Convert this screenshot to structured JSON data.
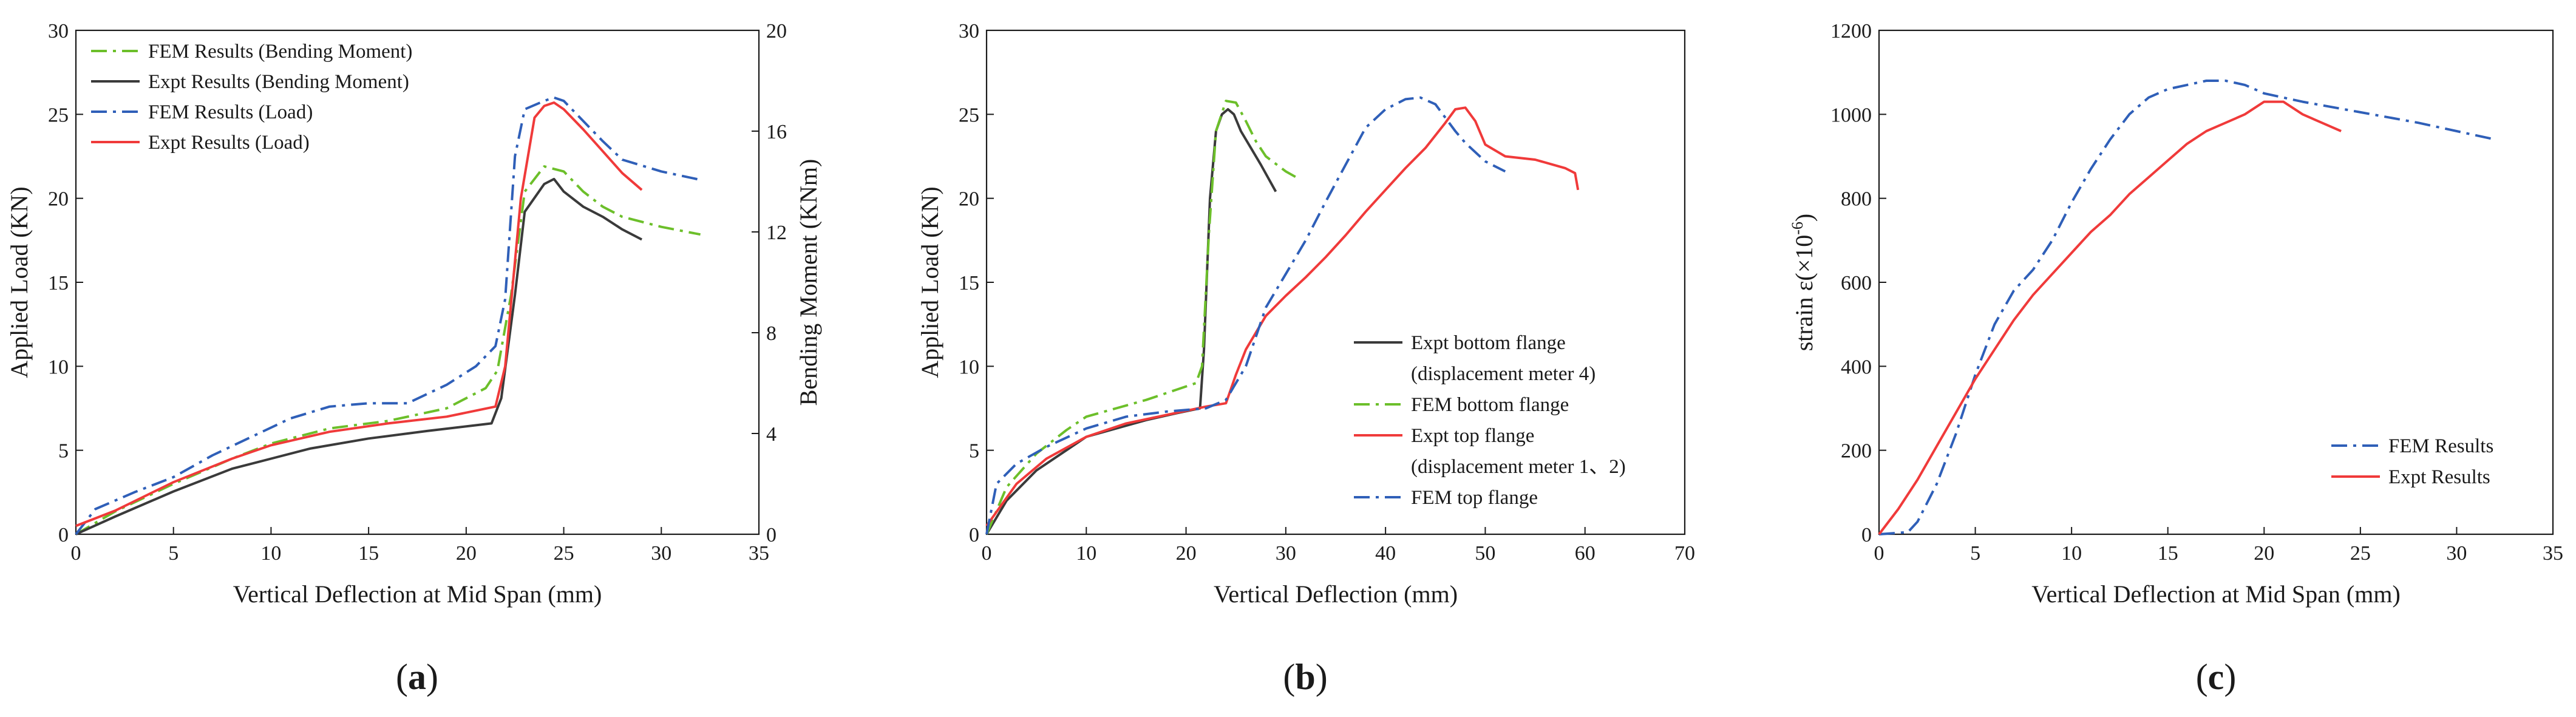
{
  "colors": {
    "green": "#6cbf2a",
    "gray": "#3a3a3a",
    "blue": "#2f5fb8",
    "red": "#f03a3a",
    "axis": "#1a1a1a"
  },
  "panels": [
    {
      "label_text": "a"
    },
    {
      "label_text": "b"
    },
    {
      "label_text": "c"
    }
  ],
  "chart_data": [
    {
      "type": "line",
      "xlabel": "Vertical Deflection at Mid Span (mm)",
      "ylabel": "Applied Load (KN)",
      "y2label": "Bending Moment (KNm)",
      "xlim": [
        0,
        35
      ],
      "ylim": [
        0,
        30
      ],
      "y2lim": [
        0,
        20
      ],
      "xticks": [
        0,
        5,
        10,
        15,
        20,
        25,
        30,
        35
      ],
      "yticks": [
        0,
        5,
        10,
        15,
        20,
        25,
        30
      ],
      "y2ticks": [
        0,
        4,
        8,
        12,
        16,
        20
      ],
      "legend_position": "top-left",
      "series": [
        {
          "name": "FEM Results (Bending Moment)",
          "axis": "right",
          "color_key": "green",
          "dash": "dashdot",
          "x": [
            0,
            2,
            5,
            8,
            10,
            13,
            16,
            19,
            21,
            21.6,
            22.3,
            23,
            24,
            25,
            26,
            27,
            28,
            30,
            32
          ],
          "y": [
            0,
            0.9,
            2.0,
            3.0,
            3.6,
            4.2,
            4.5,
            5.0,
            5.8,
            6.5,
            9.5,
            13.6,
            14.6,
            14.4,
            13.6,
            13.0,
            12.6,
            12.2,
            11.9
          ]
        },
        {
          "name": "Expt Results (Bending Moment)",
          "axis": "right",
          "color_key": "gray",
          "dash": "solid",
          "x": [
            0,
            2,
            5,
            8,
            10,
            12,
            15,
            18,
            21.3,
            21.8,
            22.5,
            23,
            24,
            24.5,
            25,
            26,
            27,
            28,
            29
          ],
          "y": [
            0,
            0.7,
            1.7,
            2.6,
            3.0,
            3.4,
            3.8,
            4.1,
            4.4,
            5.4,
            9.5,
            12.8,
            13.9,
            14.1,
            13.6,
            13.0,
            12.6,
            12.1,
            11.7
          ]
        },
        {
          "name": "FEM Results (Load)",
          "axis": "left",
          "color_key": "blue",
          "dash": "dashdot",
          "x": [
            0,
            1,
            3,
            5,
            7,
            9,
            11,
            13,
            15,
            17,
            19,
            20.5,
            21.5,
            22,
            22.5,
            23,
            24,
            24.5,
            25,
            26,
            27,
            28,
            30,
            32
          ],
          "y": [
            0,
            1.5,
            2.5,
            3.4,
            4.7,
            5.8,
            6.9,
            7.6,
            7.8,
            7.8,
            8.9,
            10.0,
            11.2,
            14,
            22.5,
            25.3,
            25.8,
            26,
            25.8,
            24.6,
            23.4,
            22.3,
            21.6,
            21.1
          ]
        },
        {
          "name": "Expt Results (Load)",
          "axis": "left",
          "color_key": "red",
          "dash": "solid",
          "x": [
            0,
            2,
            5,
            8,
            10,
            13,
            16,
            19,
            21.5,
            22,
            22.8,
            23.5,
            24,
            24.5,
            25,
            26,
            27,
            28,
            29
          ],
          "y": [
            0.5,
            1.4,
            3.1,
            4.5,
            5.3,
            6.1,
            6.6,
            7.0,
            7.6,
            10.0,
            20.0,
            24.8,
            25.5,
            25.7,
            25.3,
            24.1,
            22.8,
            21.5,
            20.5
          ]
        }
      ]
    },
    {
      "type": "line",
      "xlabel": "Vertical Deflection (mm)",
      "ylabel": "Applied Load (KN)",
      "xlim": [
        0,
        70
      ],
      "ylim": [
        0,
        30
      ],
      "xticks": [
        0,
        10,
        20,
        30,
        40,
        50,
        60,
        70
      ],
      "yticks": [
        0,
        5,
        10,
        15,
        20,
        25,
        30
      ],
      "legend_position": "lower-right",
      "series": [
        {
          "name": "Expt bottom flange",
          "name_line2": "(displacement meter 4)",
          "color_key": "gray",
          "dash": "solid",
          "x": [
            0,
            2,
            5,
            8,
            10,
            13,
            16,
            19,
            21.4,
            21.8,
            22.4,
            23.0,
            23.6,
            24.2,
            24.8,
            25.5,
            26.5,
            27.5,
            29
          ],
          "y": [
            0,
            2.0,
            3.8,
            5.0,
            5.8,
            6.3,
            6.8,
            7.2,
            7.5,
            11.0,
            20.0,
            24.0,
            25.0,
            25.3,
            25.0,
            24.0,
            23.0,
            22.0,
            20.4
          ]
        },
        {
          "name": "FEM bottom flange",
          "color_key": "green",
          "dash": "dashdot",
          "x": [
            0,
            2,
            5,
            8,
            10,
            13,
            16,
            19,
            21,
            21.6,
            22.3,
            23.0,
            24.0,
            25.0,
            26.0,
            27.0,
            28.0,
            30.0,
            31.5
          ],
          "y": [
            0,
            2.8,
            4.8,
            6.2,
            7.0,
            7.5,
            8.0,
            8.6,
            9.0,
            10.0,
            18.0,
            24.0,
            25.8,
            25.7,
            24.6,
            23.4,
            22.5,
            21.6,
            21.1
          ]
        },
        {
          "name": "Expt top flange",
          "name_line2": "(displacement meter 1、2)",
          "color_key": "red",
          "dash": "solid",
          "x": [
            0,
            3,
            6,
            10,
            14,
            18,
            22,
            24,
            25,
            26,
            28,
            30,
            32,
            34,
            36,
            38,
            40,
            42,
            44,
            46,
            47,
            48,
            49,
            50,
            52,
            55,
            58,
            59,
            59.3
          ],
          "y": [
            0.5,
            3.0,
            4.5,
            5.8,
            6.6,
            7.1,
            7.6,
            7.8,
            9.5,
            11.0,
            13.0,
            14.2,
            15.3,
            16.5,
            17.8,
            19.2,
            20.5,
            21.8,
            23.0,
            24.5,
            25.3,
            25.4,
            24.6,
            23.2,
            22.5,
            22.3,
            21.8,
            21.5,
            20.5
          ]
        },
        {
          "name": "FEM top flange",
          "color_key": "blue",
          "dash": "dashdot",
          "x": [
            0,
            1,
            3,
            6,
            10,
            14,
            18,
            22,
            24,
            26,
            28,
            30,
            32,
            34,
            36,
            38,
            40,
            42,
            43.5,
            45,
            46,
            47,
            48,
            50,
            52
          ],
          "y": [
            0,
            3.0,
            4.2,
            5.2,
            6.3,
            7.0,
            7.3,
            7.5,
            8.0,
            10.0,
            13.5,
            15.5,
            17.5,
            19.8,
            22.0,
            24.2,
            25.3,
            25.9,
            26.0,
            25.6,
            24.8,
            24.0,
            23.3,
            22.2,
            21.6
          ]
        }
      ]
    },
    {
      "type": "line",
      "xlabel": "Vertical Deflection at Mid Span (mm)",
      "ylabel": "strain ε(×10",
      "ylabel_sup": "-6",
      "ylabel_end": ")",
      "xlim": [
        0,
        35
      ],
      "ylim": [
        0,
        1200
      ],
      "xticks": [
        0,
        5,
        10,
        15,
        20,
        25,
        30,
        35
      ],
      "yticks": [
        0,
        200,
        400,
        600,
        800,
        1000,
        1200
      ],
      "legend_position": "lower-right",
      "series": [
        {
          "name": "FEM Results",
          "color_key": "blue",
          "dash": "dashdot",
          "x": [
            0,
            1.5,
            2,
            3,
            4,
            5,
            6,
            7,
            8,
            9,
            10,
            11,
            12,
            13,
            14,
            15,
            16,
            17,
            18,
            19,
            20,
            22,
            25,
            28,
            32
          ],
          "y": [
            0,
            5,
            30,
            120,
            240,
            380,
            500,
            580,
            630,
            700,
            790,
            870,
            940,
            1000,
            1040,
            1060,
            1070,
            1080,
            1080,
            1070,
            1050,
            1030,
            1005,
            980,
            940
          ]
        },
        {
          "name": "Expt Results",
          "color_key": "red",
          "dash": "solid",
          "x": [
            0,
            1,
            2,
            3,
            4,
            5,
            6,
            7,
            8,
            9,
            10,
            11,
            12,
            13,
            14,
            15,
            16,
            17,
            17.5,
            18,
            18.5,
            19,
            20,
            21,
            22,
            23,
            24
          ],
          "y": [
            0,
            60,
            130,
            210,
            290,
            370,
            440,
            510,
            570,
            620,
            670,
            720,
            760,
            810,
            850,
            890,
            930,
            960,
            970,
            980,
            990,
            1000,
            1030,
            1030,
            1000,
            980,
            960
          ]
        }
      ]
    }
  ]
}
